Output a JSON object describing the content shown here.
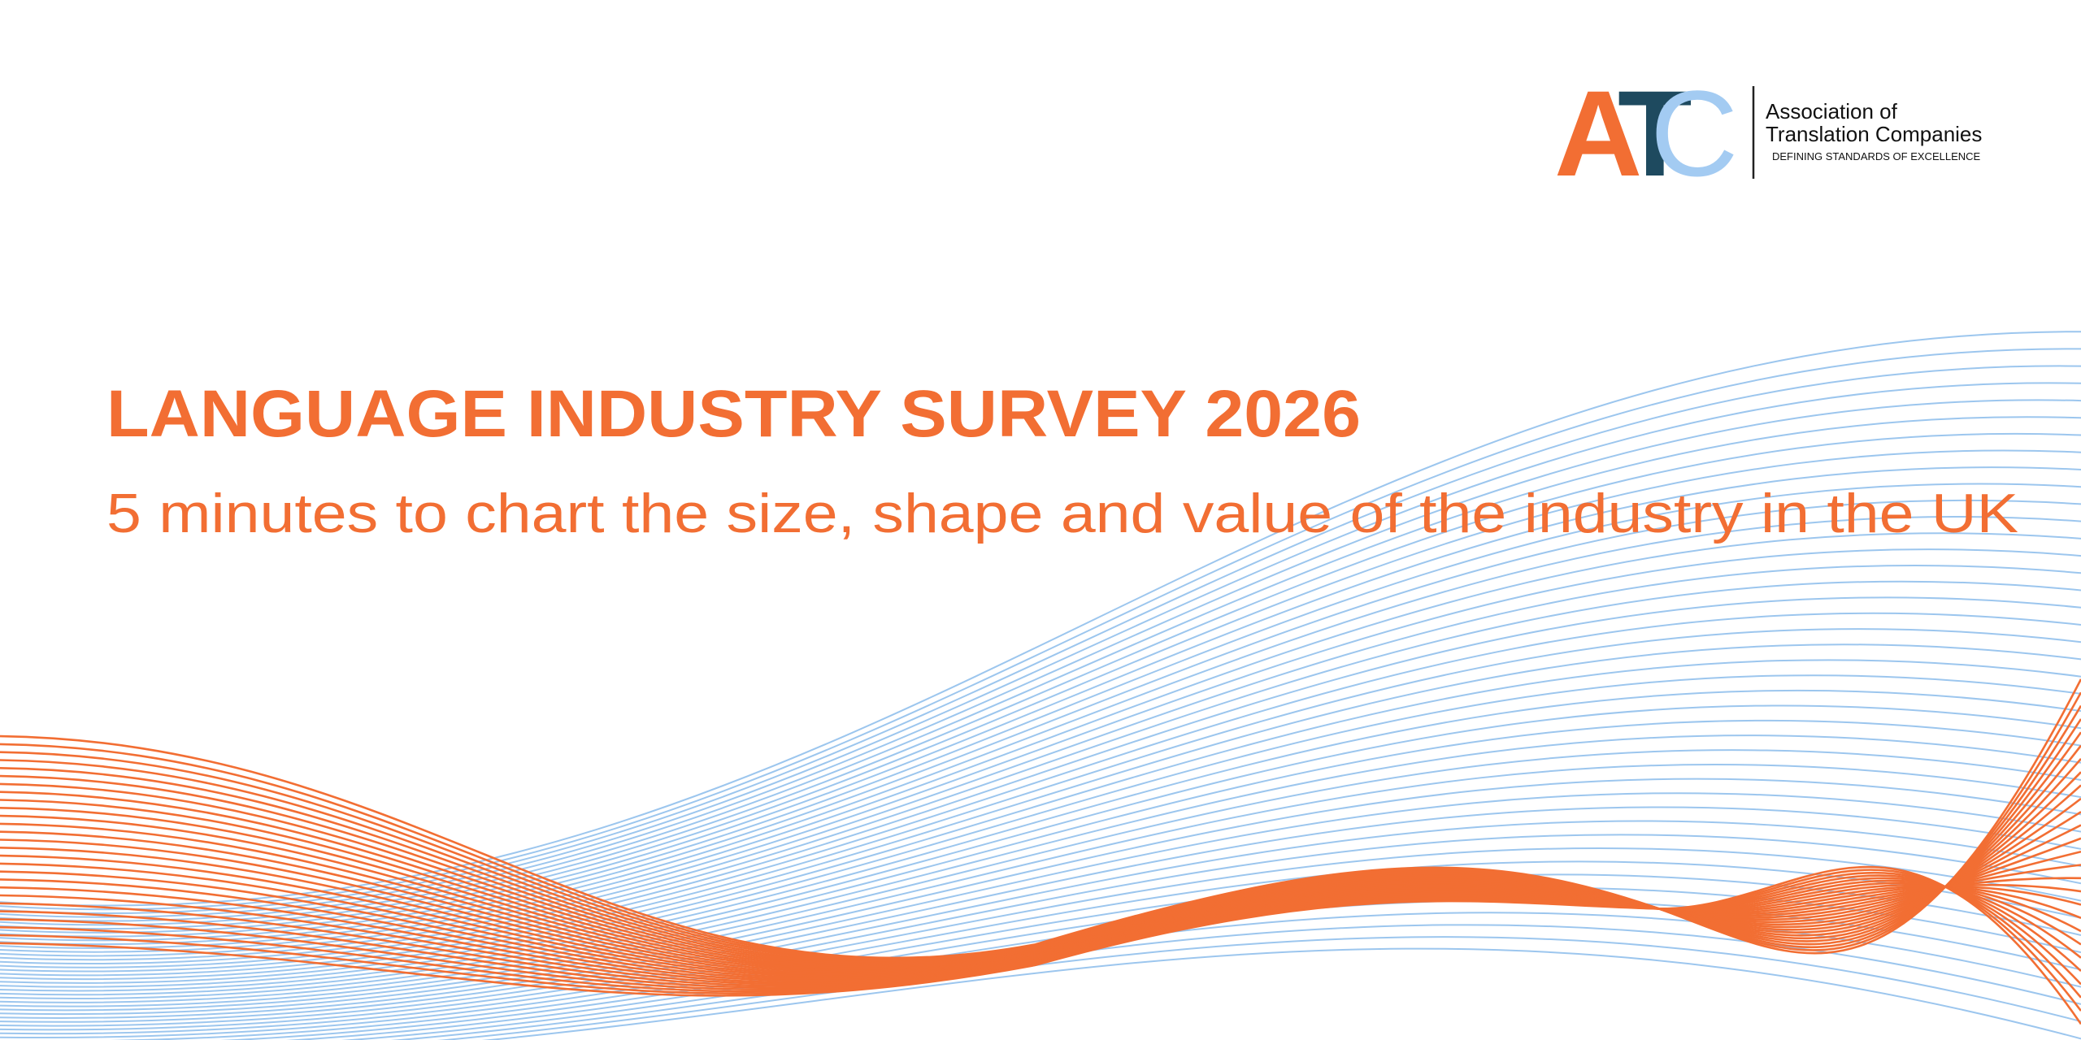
{
  "logo": {
    "letters": [
      "A",
      "T",
      "C"
    ],
    "name_line1": "Association of",
    "name_line2": "Translation Companies",
    "tagline": "DEFINING STANDARDS OF EXCELLENCE"
  },
  "header": {
    "title": "LANGUAGE INDUSTRY SURVEY 2026",
    "subtitle": "5 minutes to chart the size, shape and value of the industry in the UK"
  }
}
